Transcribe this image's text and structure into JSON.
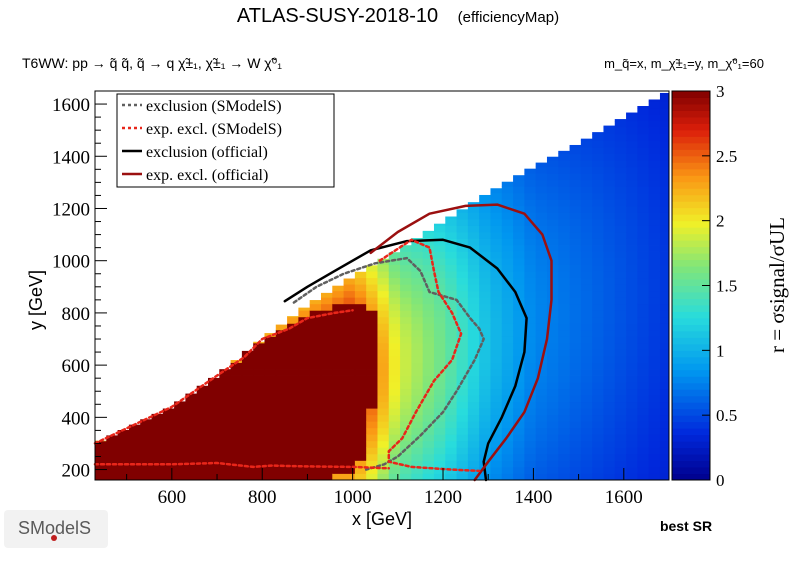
{
  "header": {
    "title": "ATLAS-SUSY-2018-10",
    "subtitle": "(efficiencyMap)",
    "process": "T6WW: pp  → q̃ q̃, q̃ → q χ̃±₁, χ̃±₁ → W χ̃⁰₁",
    "masses": "m_q̃=x, m_χ̃±₁=y, m_χ̃⁰₁=60"
  },
  "footer": {
    "logo_text": "SModelS",
    "best_sr": "best SR"
  },
  "colors": {
    "exclusion_smodels": "#606060",
    "exp_excl_smodels": "#e8261a",
    "exclusion_official": "#000000",
    "exp_excl_official": "#9b1010"
  },
  "chart_data": {
    "type": "heatmap",
    "xlabel": "x [GeV]",
    "ylabel": "y [GeV]",
    "zlabel": "r = σsignal/σUL",
    "xlim": [
      430,
      1700
    ],
    "ylim": [
      160,
      1650
    ],
    "zlim": [
      0,
      3
    ],
    "xticks": [
      600,
      800,
      1000,
      1200,
      1400,
      1600
    ],
    "yticks": [
      200,
      400,
      600,
      800,
      1000,
      1200,
      1400,
      1600
    ],
    "zticks": [
      0,
      0.5,
      1,
      1.5,
      2,
      2.5,
      3
    ],
    "legend_position": "top-left",
    "legend": [
      {
        "label": "exclusion (SModelS)",
        "style": "dotted",
        "color": "#606060"
      },
      {
        "label": "exp. excl. (SModelS)",
        "style": "dotted",
        "color": "#e8261a"
      },
      {
        "label": "exclusion (official)",
        "style": "solid",
        "color": "#000000"
      },
      {
        "label": "exp. excl. (official)",
        "style": "solid",
        "color": "#9b1010"
      }
    ],
    "region": {
      "x_min": 430,
      "x_max": 1700,
      "y_min": 160,
      "upper_edge": [
        [
          430,
          300
        ],
        [
          600,
          440
        ],
        [
          700,
          560
        ],
        [
          800,
          700
        ],
        [
          900,
          830
        ],
        [
          1000,
          940
        ],
        [
          1100,
          1040
        ],
        [
          1200,
          1150
        ],
        [
          1300,
          1260
        ],
        [
          1400,
          1360
        ],
        [
          1500,
          1450
        ],
        [
          1600,
          1550
        ],
        [
          1700,
          1650
        ]
      ]
    },
    "r_model": {
      "saturated_core": [
        [
          430,
          160
        ],
        [
          430,
          300
        ],
        [
          700,
          560
        ],
        [
          800,
          700
        ],
        [
          900,
          800
        ],
        [
          1000,
          835
        ],
        [
          1040,
          820
        ],
        [
          1060,
          700
        ],
        [
          1040,
          400
        ],
        [
          1020,
          230
        ],
        [
          1000,
          180
        ],
        [
          850,
          160
        ]
      ],
      "edge_value_x": [
        1000,
        1100,
        1200,
        1300,
        1400,
        1500,
        1600,
        1700
      ],
      "edge_value_r": [
        2.5,
        1.6,
        1.3,
        0.9,
        0.65,
        0.55,
        0.45,
        0.35
      ]
    },
    "series": [
      {
        "name": "exclusion (official)",
        "points": [
          [
            850,
            845
          ],
          [
            900,
            900
          ],
          [
            960,
            960
          ],
          [
            1040,
            1040
          ],
          [
            1120,
            1075
          ],
          [
            1200,
            1080
          ],
          [
            1260,
            1050
          ],
          [
            1320,
            970
          ],
          [
            1360,
            880
          ],
          [
            1385,
            780
          ],
          [
            1380,
            650
          ],
          [
            1360,
            520
          ],
          [
            1330,
            400
          ],
          [
            1300,
            300
          ],
          [
            1290,
            230
          ],
          [
            1295,
            160
          ]
        ]
      },
      {
        "name": "exp. excl. (official)",
        "points": [
          [
            1040,
            1030
          ],
          [
            1100,
            1110
          ],
          [
            1170,
            1180
          ],
          [
            1250,
            1210
          ],
          [
            1320,
            1215
          ],
          [
            1380,
            1180
          ],
          [
            1420,
            1100
          ],
          [
            1440,
            1000
          ],
          [
            1440,
            850
          ],
          [
            1430,
            700
          ],
          [
            1410,
            550
          ],
          [
            1380,
            420
          ],
          [
            1340,
            320
          ],
          [
            1300,
            230
          ],
          [
            1270,
            160
          ]
        ]
      },
      {
        "name": "exclusion (SModelS)",
        "points": [
          [
            870,
            840
          ],
          [
            920,
            900
          ],
          [
            980,
            950
          ],
          [
            1050,
            990
          ],
          [
            1120,
            1010
          ],
          [
            1150,
            960
          ],
          [
            1170,
            880
          ],
          [
            1230,
            850
          ],
          [
            1260,
            780
          ],
          [
            1280,
            740
          ],
          [
            1290,
            700
          ],
          [
            1270,
            620
          ],
          [
            1250,
            560
          ],
          [
            1230,
            500
          ],
          [
            1200,
            420
          ],
          [
            1150,
            330
          ],
          [
            1100,
            250
          ],
          [
            1070,
            220
          ],
          [
            1030,
            200
          ]
        ]
      },
      {
        "name": "exp. excl. (SModelS)",
        "points": [
          [
            1060,
            1000
          ],
          [
            1130,
            1080
          ],
          [
            1170,
            1050
          ],
          [
            1180,
            960
          ],
          [
            1190,
            880
          ],
          [
            1220,
            800
          ],
          [
            1240,
            720
          ],
          [
            1220,
            620
          ],
          [
            1180,
            540
          ],
          [
            1140,
            420
          ],
          [
            1110,
            320
          ],
          [
            1080,
            270
          ],
          [
            1080,
            230
          ],
          [
            1130,
            210
          ],
          [
            1220,
            200
          ],
          [
            1280,
            195
          ]
        ]
      },
      {
        "name": "region boundary (SModelS)",
        "points": [
          [
            430,
            300
          ],
          [
            600,
            440
          ],
          [
            700,
            560
          ],
          [
            760,
            630
          ],
          [
            800,
            700
          ],
          [
            860,
            740
          ],
          [
            900,
            780
          ],
          [
            960,
            800
          ],
          [
            1000,
            810
          ]
        ]
      },
      {
        "name": "region boundary (SModelS) bottom",
        "points": [
          [
            430,
            220
          ],
          [
            600,
            220
          ],
          [
            700,
            225
          ],
          [
            780,
            210
          ],
          [
            820,
            215
          ],
          [
            900,
            212
          ],
          [
            1000,
            210
          ],
          [
            1080,
            205
          ]
        ]
      }
    ]
  }
}
